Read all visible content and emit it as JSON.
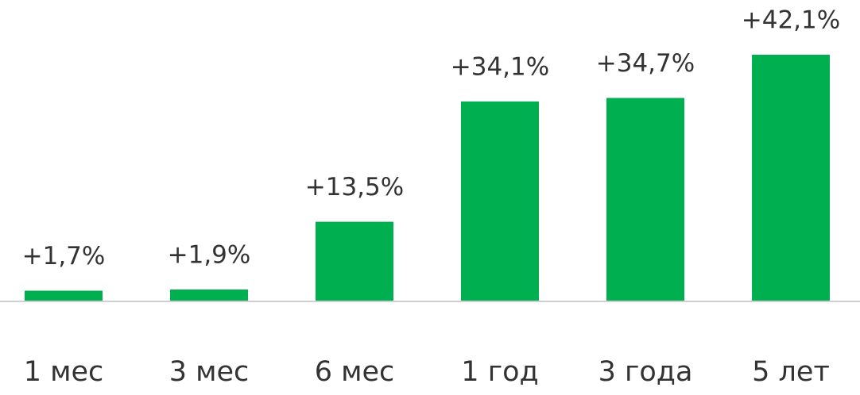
{
  "chart_data": {
    "type": "bar",
    "categories": [
      "1 мес",
      "3 мес",
      "6 мес",
      "1 год",
      "3 года",
      "5 лет"
    ],
    "values": [
      1.7,
      1.9,
      13.5,
      34.1,
      34.7,
      42.1
    ],
    "value_labels": [
      "+1,7%",
      "+1,9%",
      "+13,5%",
      "+34,1%",
      "+34,7%",
      "+42,1%"
    ],
    "color": "#00b050"
  }
}
